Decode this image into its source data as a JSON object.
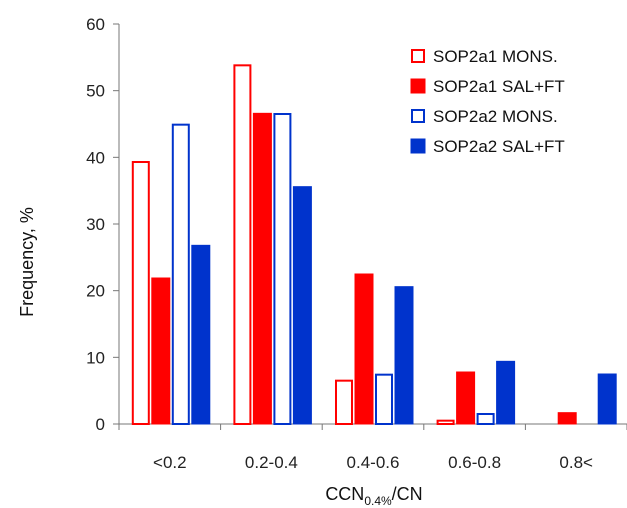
{
  "chart_data": {
    "type": "bar",
    "categories": [
      "<0.2",
      "0.2-0.4",
      "0.4-0.6",
      "0.6-0.8",
      "0.8<"
    ],
    "series": [
      {
        "name": "SOP2a1 MONS.",
        "values": [
          39.3,
          53.8,
          6.5,
          0.5,
          0
        ],
        "color": "#ff0000",
        "fill": "hollow"
      },
      {
        "name": "SOP2a1 SAL+FT",
        "values": [
          21.9,
          46.6,
          22.5,
          7.8,
          1.7
        ],
        "color": "#ff0000",
        "fill": "solid"
      },
      {
        "name": "SOP2a2 MONS.",
        "values": [
          44.9,
          46.5,
          7.4,
          1.5,
          0
        ],
        "color": "#0033cc",
        "fill": "hollow"
      },
      {
        "name": "SOP2a2 SAL+FT",
        "values": [
          26.8,
          35.6,
          20.6,
          9.4,
          7.5
        ],
        "color": "#0033cc",
        "fill": "solid"
      }
    ],
    "xlabel": "CCN0.4%/CN",
    "xlabel_main": "CCN",
    "xlabel_sub": "0.4%",
    "xlabel_tail": "/CN",
    "ylabel": "Frequency, %",
    "ylim": [
      0,
      60
    ],
    "yticks": [
      "0",
      "10",
      "20",
      "30",
      "40",
      "50",
      "60"
    ],
    "grid": false,
    "legend_position": "top-right"
  }
}
